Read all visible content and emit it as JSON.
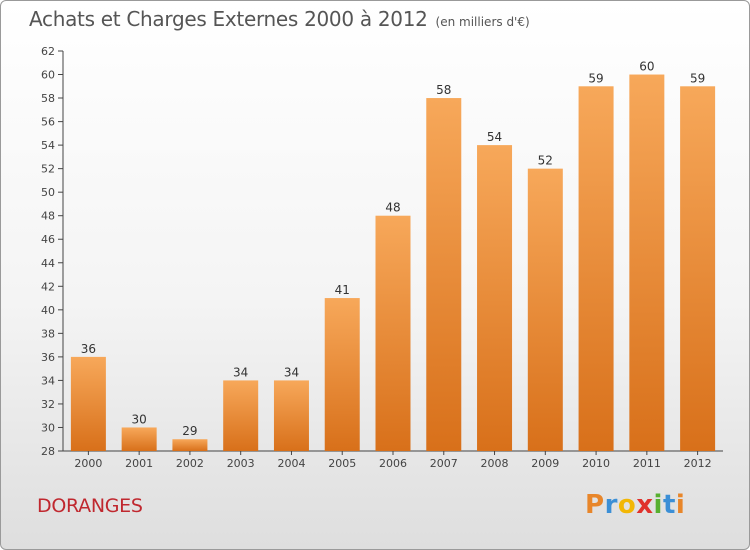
{
  "header": {
    "title": "Achats et Charges Externes 2000 à 2012",
    "unit": "(en milliers d'€)"
  },
  "footer": {
    "commune": "DORANGES",
    "logo": {
      "letters": [
        "P",
        "r",
        "o",
        "x",
        "i",
        "t",
        "i"
      ],
      "colors": [
        "#e8862a",
        "#3b8fd6",
        "#f2b705",
        "#e0322c",
        "#58b030",
        "#3b8fd6",
        "#e8862a"
      ]
    }
  },
  "chart_data": {
    "type": "bar",
    "categories": [
      "2000",
      "2001",
      "2002",
      "2003",
      "2004",
      "2005",
      "2006",
      "2007",
      "2008",
      "2009",
      "2010",
      "2011",
      "2012"
    ],
    "values": [
      36,
      30,
      29,
      34,
      34,
      41,
      48,
      58,
      54,
      52,
      59,
      60,
      59
    ],
    "data_labels": [
      "36",
      "30",
      "29",
      "34",
      "34",
      "41",
      "48",
      "58",
      "54",
      "52",
      "59",
      "60",
      "59"
    ],
    "y_ticks": [
      "28",
      "30",
      "32",
      "34",
      "36",
      "38",
      "40",
      "42",
      "44",
      "46",
      "48",
      "50",
      "52",
      "54",
      "56",
      "58",
      "60",
      "62"
    ],
    "ylim": [
      28,
      62
    ],
    "grid": false,
    "bar_color_top": "#f7a85a",
    "bar_color_bottom": "#d8701a"
  }
}
